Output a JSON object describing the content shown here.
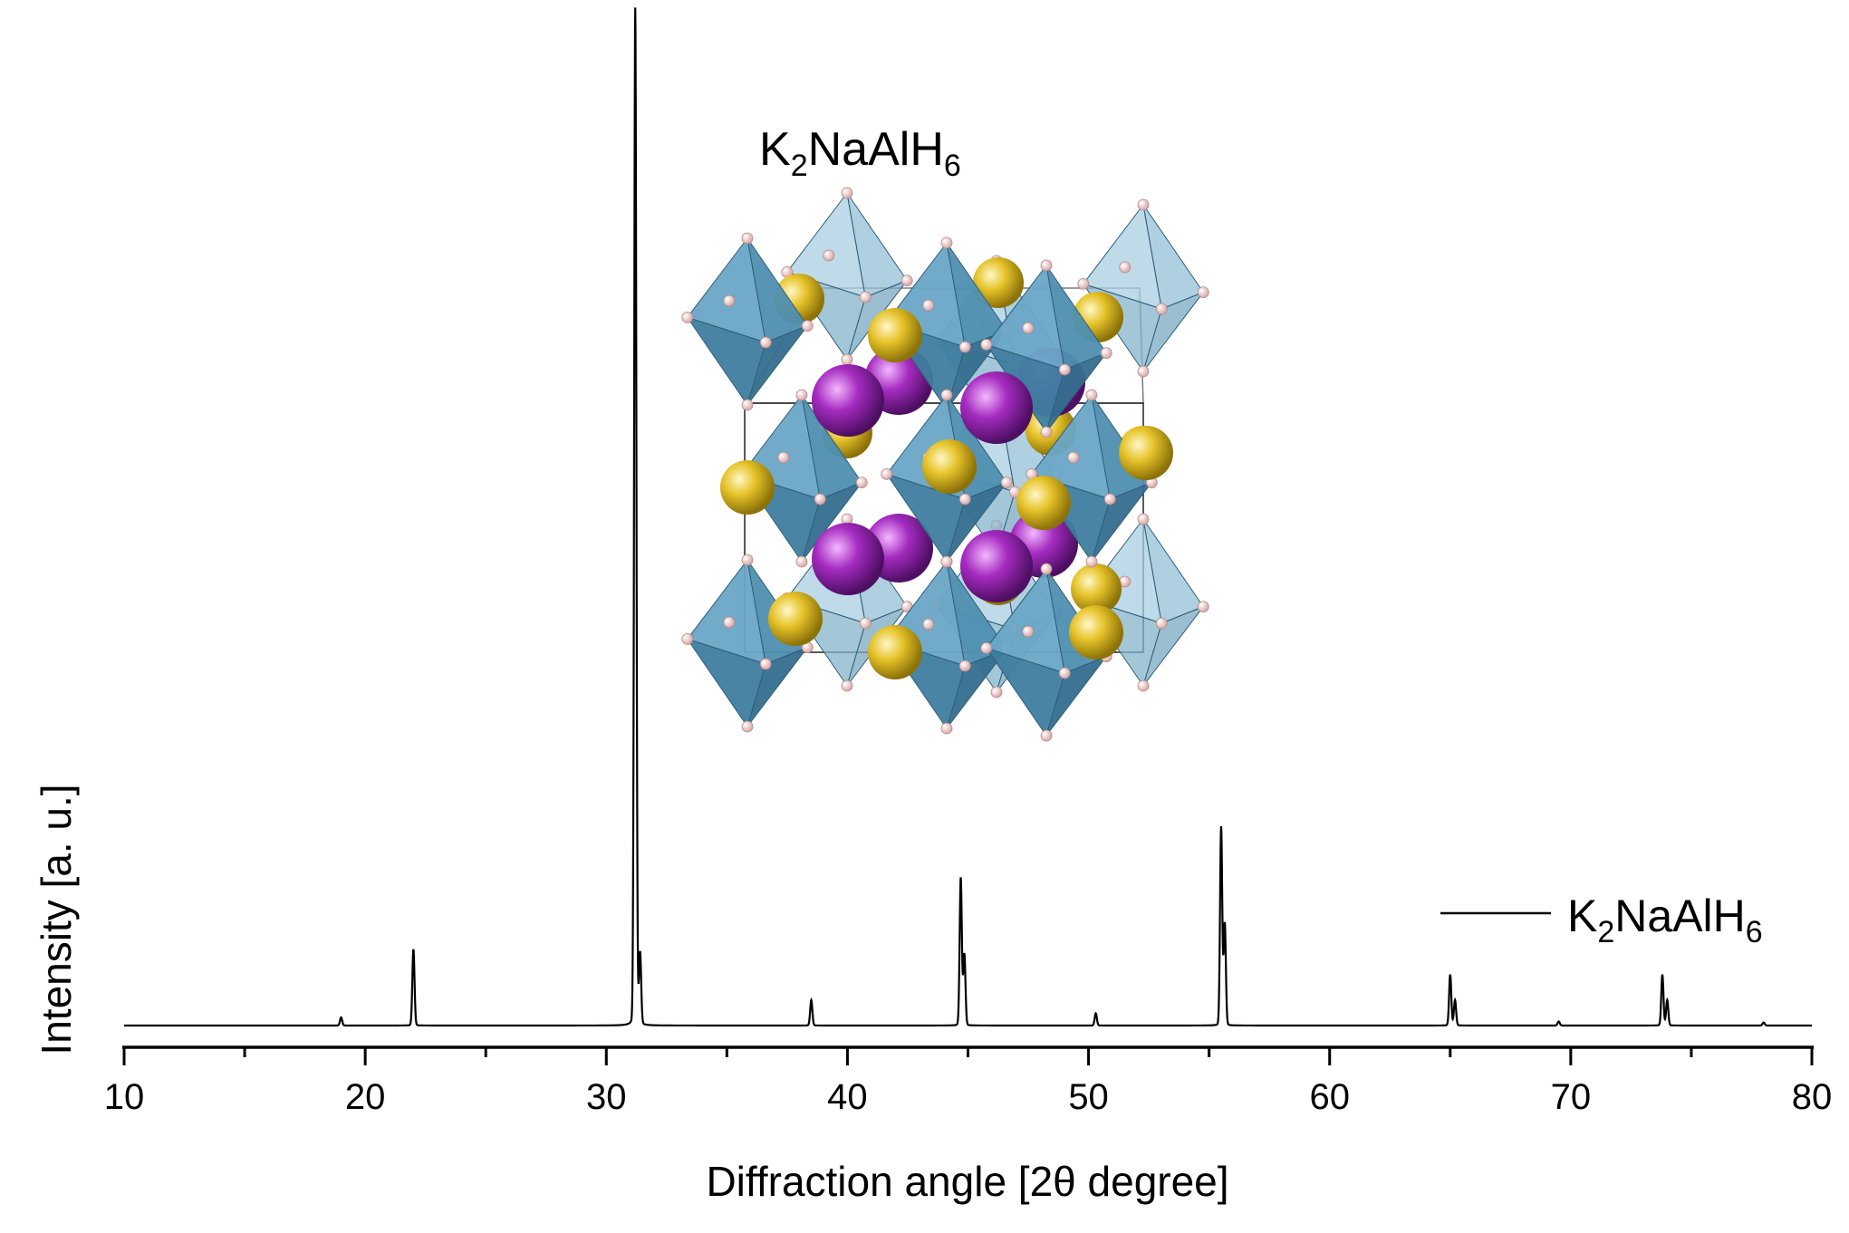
{
  "chart_data": {
    "type": "line",
    "xlabel": "Diffraction angle [2θ degree]",
    "ylabel": "Intensity [a. u.]",
    "xlim": [
      10,
      80
    ],
    "xticks": [
      10,
      20,
      30,
      40,
      50,
      60,
      70,
      80
    ],
    "y_ticks_shown": false,
    "grid": false,
    "legend": {
      "position": "right-middle",
      "entries": [
        {
          "name_main": "K",
          "sub1": "2",
          "mid": "NaAlH",
          "sub2": "6"
        }
      ]
    },
    "annotation": {
      "main": "K",
      "sub1": "2",
      "mid": "NaAlH",
      "sub2": "6"
    },
    "inset": "crystal structure of K2NaAlH6 (Al-H octahedra blue, K yellow, Na purple, H pink)",
    "colors": {
      "line": "#000000",
      "octahedra": "#4f8fb0",
      "potassium": "#e6c32a",
      "sodium": "#a52cc0",
      "hydrogen": "#f3d2d2"
    },
    "series": [
      {
        "baseline": 0,
        "peaks": [
          {
            "x": 19.0,
            "y": 0.8
          },
          {
            "x": 22.0,
            "y": 7.5
          },
          {
            "x": 31.2,
            "y": 100
          },
          {
            "x": 31.4,
            "y": 7
          },
          {
            "x": 38.5,
            "y": 2.5
          },
          {
            "x": 44.7,
            "y": 14.5
          },
          {
            "x": 44.85,
            "y": 7
          },
          {
            "x": 50.3,
            "y": 1.2
          },
          {
            "x": 55.5,
            "y": 19.5
          },
          {
            "x": 55.65,
            "y": 10
          },
          {
            "x": 65.0,
            "y": 5
          },
          {
            "x": 65.2,
            "y": 2.5
          },
          {
            "x": 69.5,
            "y": 0.4
          },
          {
            "x": 73.8,
            "y": 5
          },
          {
            "x": 74.0,
            "y": 2.5
          },
          {
            "x": 78.0,
            "y": 0.3
          }
        ]
      }
    ]
  }
}
